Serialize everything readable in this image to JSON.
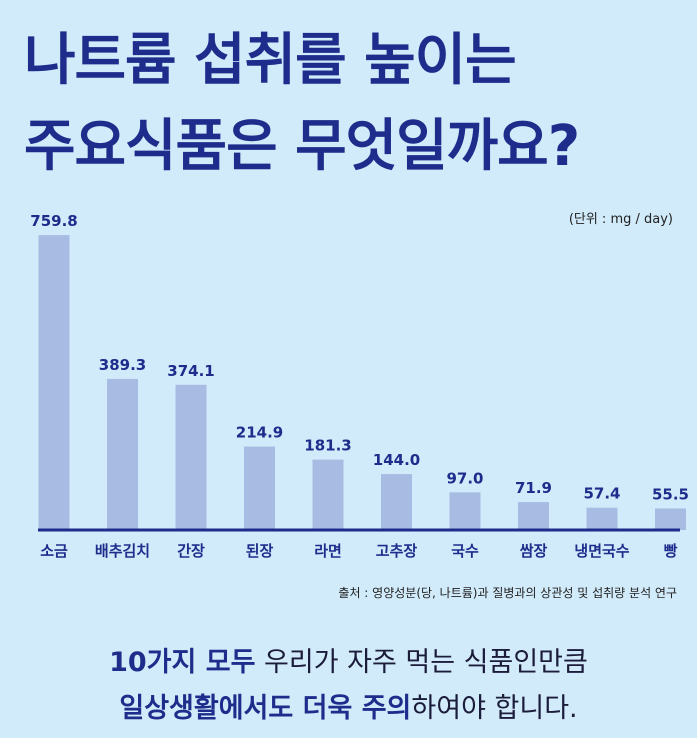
{
  "title": {
    "line1": "나트륨 섭취를 높이는",
    "line2": "주요식품은 무엇일까요?"
  },
  "unit_label": "(단위 : mg / day)",
  "source": "출처 : 영양성분(당, 나트륨)과 질병과의 상관성 및 섭취량 분석 연구",
  "footer": {
    "line1_em": "10가지 모두",
    "line1_rest": " 우리가 자주 먹는 식품인만큼",
    "line2_em": "일상생활에서도 더욱 주의",
    "line2_rest": "하여야 합니다."
  },
  "colors": {
    "bar": "#a8bbe2",
    "baseline": "#1e2d8c",
    "label": "#1e2d8c",
    "background": "#d2ebfa"
  },
  "chart_data": {
    "type": "bar",
    "categories": [
      "소금",
      "배추김치",
      "간장",
      "된장",
      "라면",
      "고추장",
      "국수",
      "쌈장",
      "냉면국수",
      "빵"
    ],
    "values": [
      759.8,
      389.3,
      374.1,
      214.9,
      181.3,
      144.0,
      97.0,
      71.9,
      57.4,
      55.5
    ],
    "value_labels": [
      "759.8",
      "389.3",
      "374.1",
      "214.9",
      "181.3",
      "144.0",
      "97.0",
      "71.9",
      "57.4",
      "55.5"
    ],
    "unit": "(단위 : mg / day)",
    "ylim": [
      0,
      760
    ],
    "grid": false,
    "legend": "none"
  }
}
